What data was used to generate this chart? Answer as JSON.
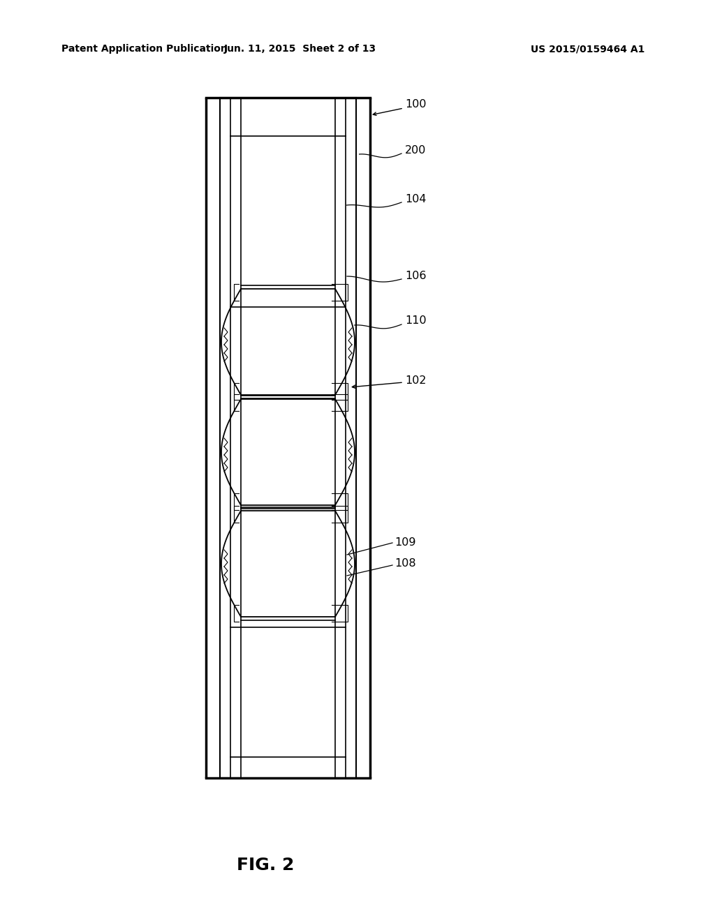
{
  "bg_color": "#ffffff",
  "header_left": "Patent Application Publication",
  "header_mid": "Jun. 11, 2015  Sheet 2 of 13",
  "header_right": "US 2015/0159464 A1",
  "fig_label": "FIG. 2"
}
